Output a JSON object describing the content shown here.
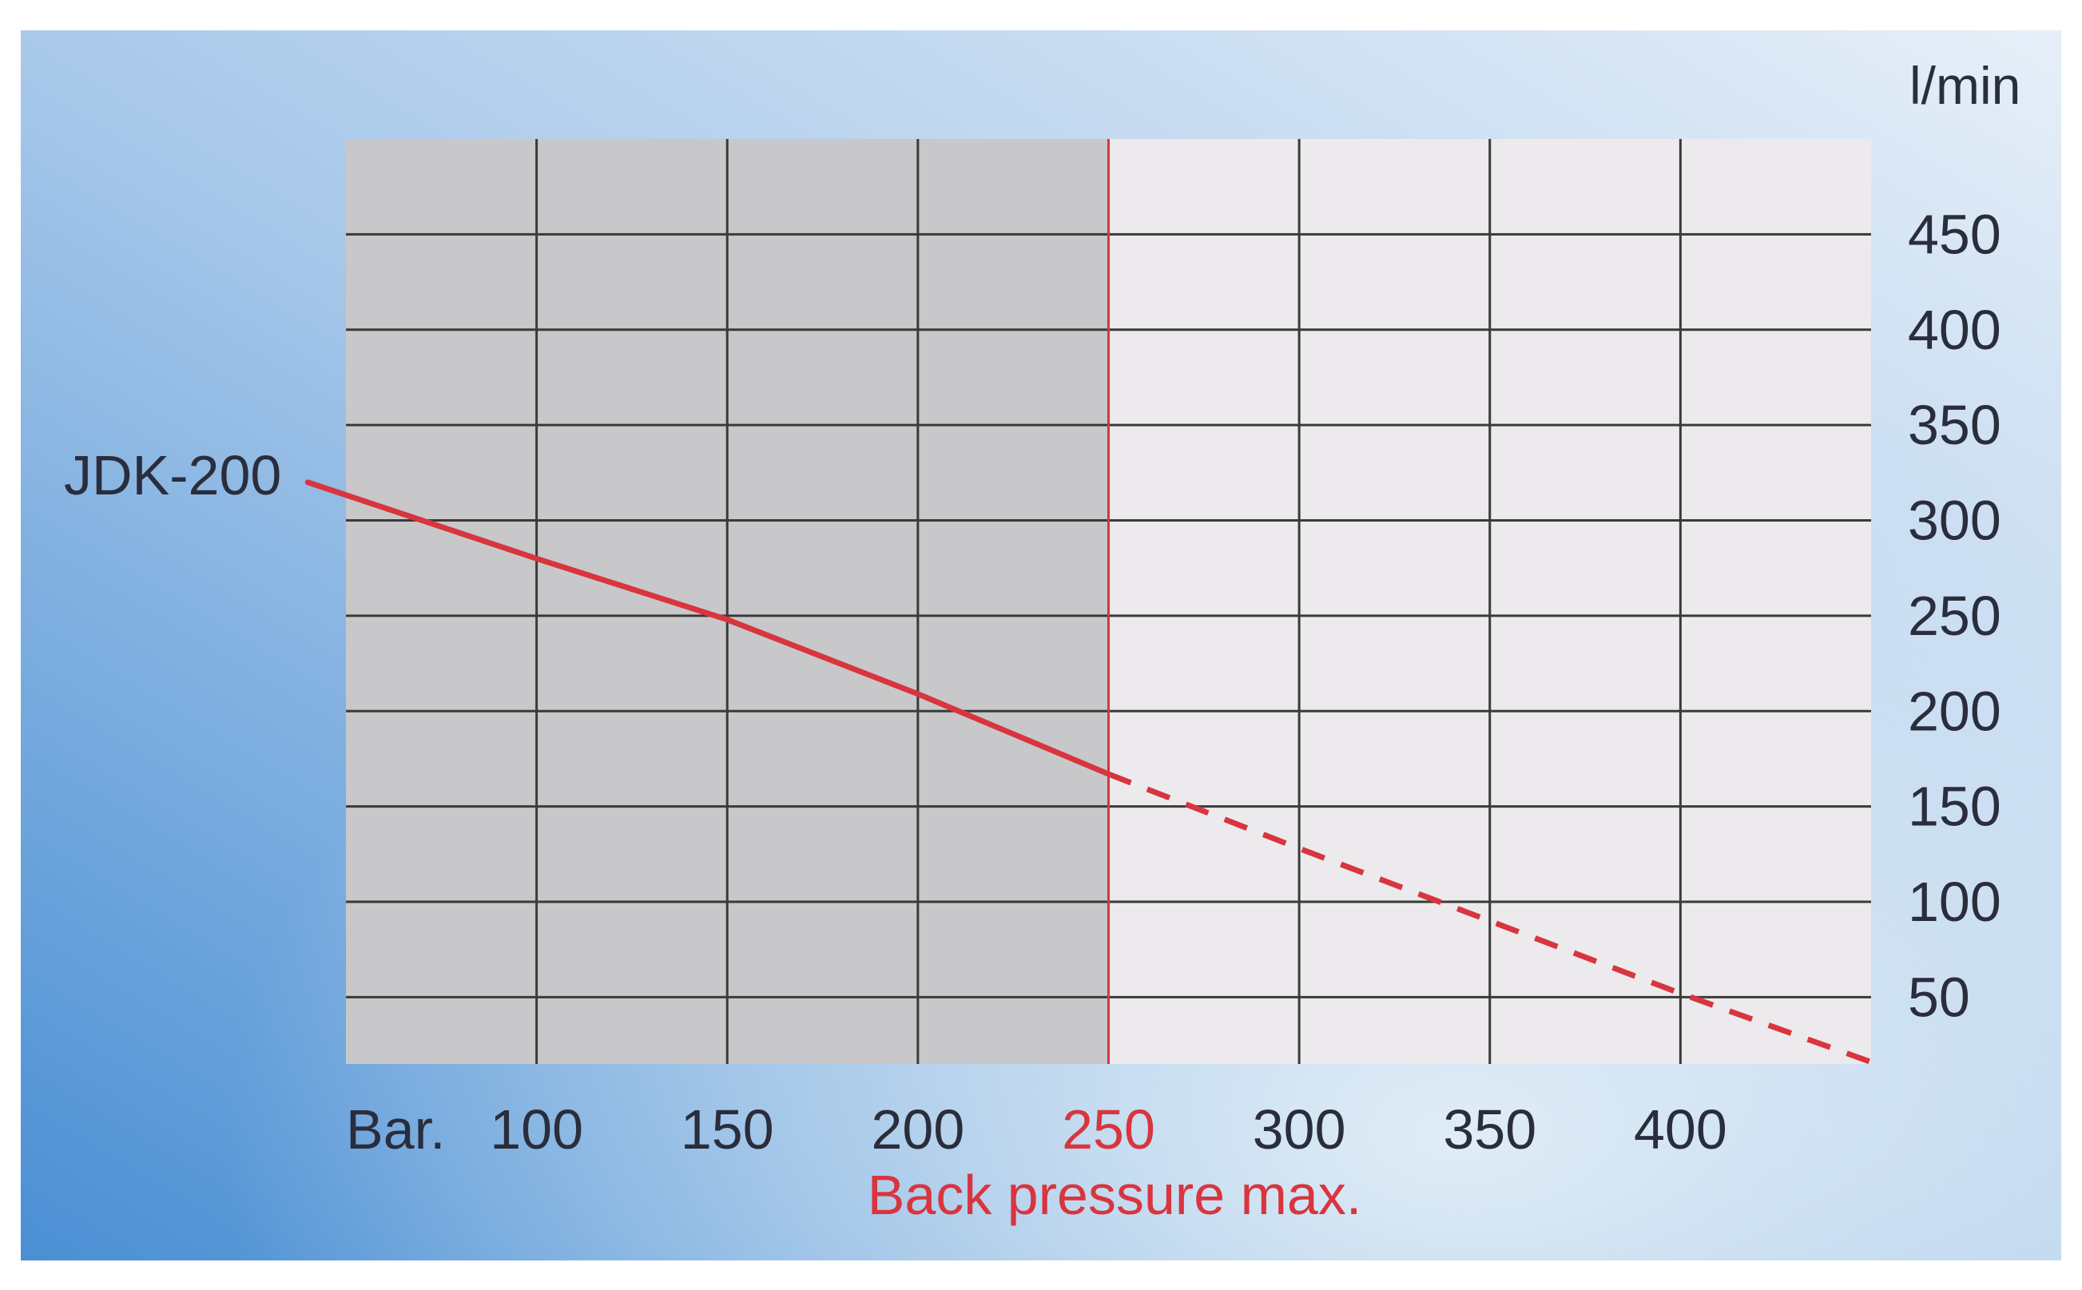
{
  "chart_data": {
    "type": "line",
    "x_unit_label": "Bar.",
    "y_unit_label": "l/min",
    "x_ticks": [
      100,
      150,
      200,
      250,
      300,
      350,
      400
    ],
    "y_ticks": [
      50,
      100,
      150,
      200,
      250,
      300,
      350,
      400,
      450
    ],
    "xlim": [
      50,
      450
    ],
    "ylim": [
      15,
      500
    ],
    "grid": true,
    "shaded_region": {
      "x_from": 50,
      "x_to": 250
    },
    "highlight_tick": 250,
    "annotation": "Back pressure max.",
    "series": [
      {
        "name": "JDK-200",
        "points": [
          {
            "x": 40,
            "y": 320
          },
          {
            "x": 100,
            "y": 280
          },
          {
            "x": 150,
            "y": 248
          },
          {
            "x": 200,
            "y": 209
          },
          {
            "x": 250,
            "y": 167
          }
        ],
        "extrapolated_points": [
          {
            "x": 250,
            "y": 167
          },
          {
            "x": 300,
            "y": 128
          },
          {
            "x": 350,
            "y": 90
          },
          {
            "x": 400,
            "y": 52
          },
          {
            "x": 450,
            "y": 16
          }
        ]
      }
    ],
    "colors": {
      "line": "#d8353f",
      "highlight_text": "#d8353f",
      "grid": "#3a3a3a",
      "shaded": "#c8c8ca",
      "plot_bg": "#eceaec",
      "text": "#2a2d3c",
      "bg_blue": "#4a8fd4",
      "bg_light": "#e6eff8"
    }
  }
}
